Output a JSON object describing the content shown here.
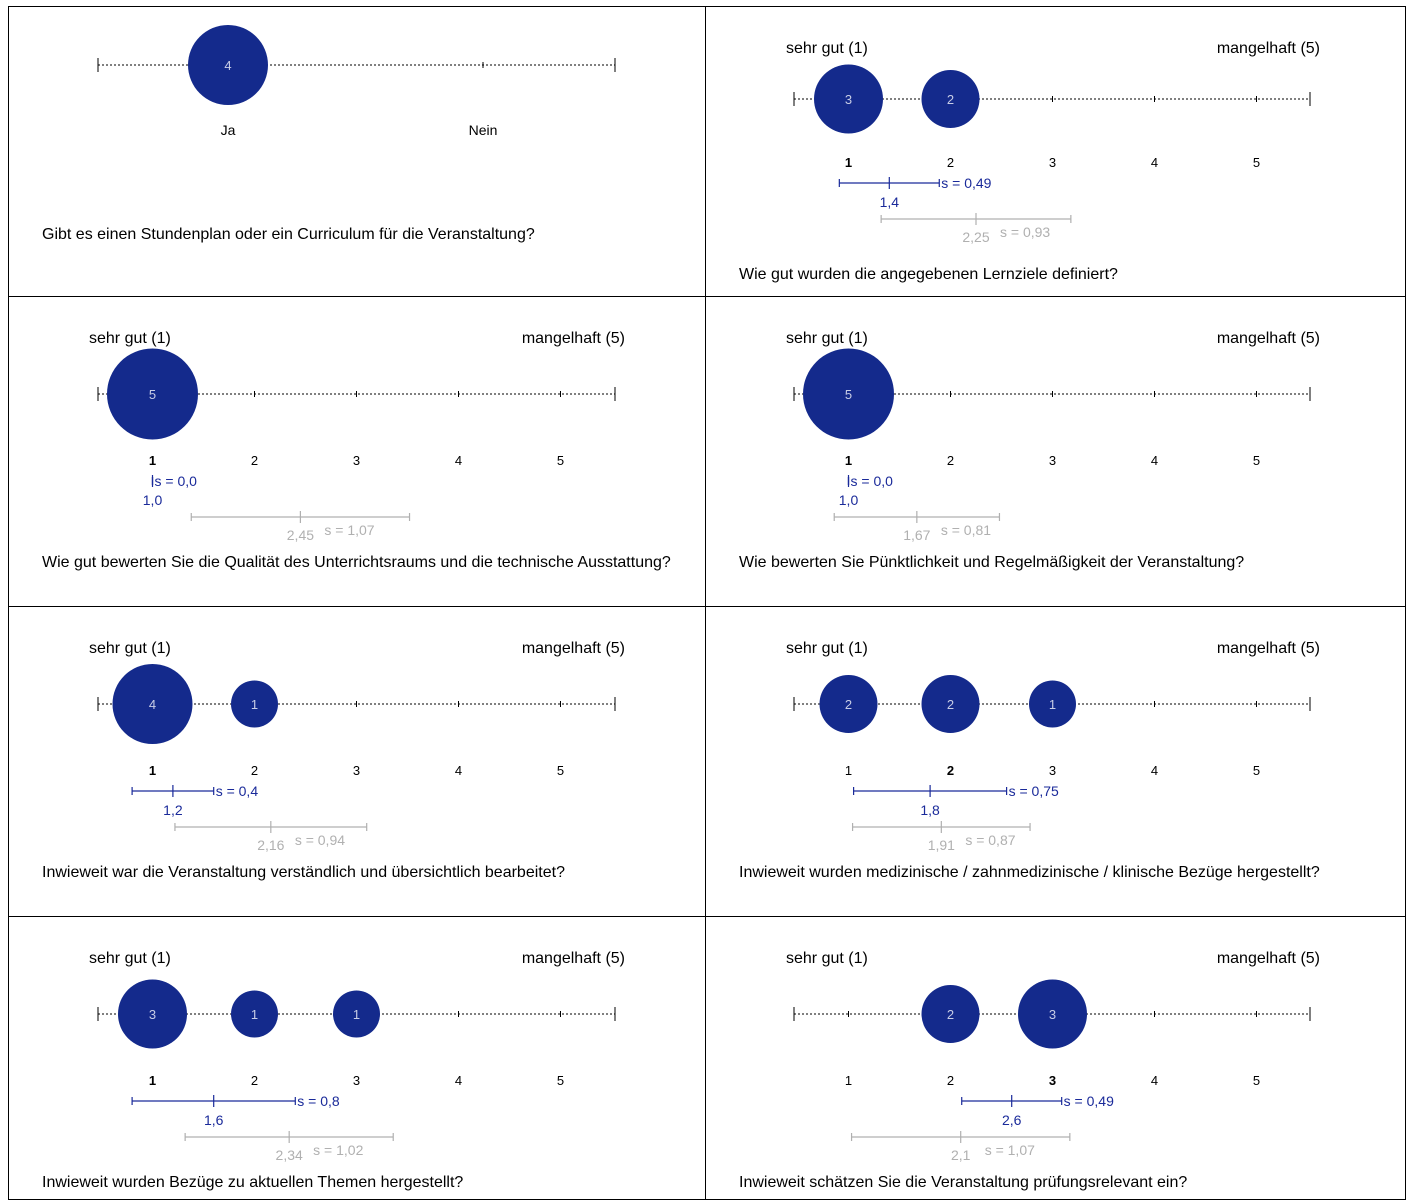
{
  "colors": {
    "bubble": "#142a8c",
    "bubble_text": "#c8cde6",
    "own_stat": "#1a2a9a",
    "ref_stat": "#b0b0b0",
    "axis": "#000000"
  },
  "chart_data": [
    {
      "type": "scatter",
      "subtype": "bubble-rating-yes-no",
      "question": "Gibt es einen Stundenplan oder ein Curriculum für die Veranstaltung?",
      "category_labels": [
        "Ja",
        "Nein"
      ],
      "bubbles": [
        {
          "x": 1,
          "count": 4
        }
      ]
    },
    {
      "type": "scatter",
      "subtype": "bubble-rating",
      "question": "Wie gut wurden die angegebenen Lernziele definiert?",
      "scale_low_label": "sehr gut (1)",
      "scale_high_label": "mangelhaft (5)",
      "ticks": [
        "1",
        "2",
        "3",
        "4",
        "5"
      ],
      "bold_tick": "1",
      "bubbles": [
        {
          "x": 1,
          "count": 3
        },
        {
          "x": 2,
          "count": 2
        }
      ],
      "mean": 1.4,
      "mean_label": "1,4",
      "sd_label": "s = 0,49",
      "ref_mean": 2.25,
      "ref_mean_label": "2,25",
      "ref_sd_label": "s = 0,93"
    },
    {
      "type": "scatter",
      "subtype": "bubble-rating",
      "question": "Wie gut bewerten Sie die Qualität des Unterrichtsraums und die technische Ausstattung?",
      "scale_low_label": "sehr gut (1)",
      "scale_high_label": "mangelhaft (5)",
      "ticks": [
        "1",
        "2",
        "3",
        "4",
        "5"
      ],
      "bold_tick": "1",
      "bubbles": [
        {
          "x": 1,
          "count": 5
        }
      ],
      "mean": 1.0,
      "mean_label": "1,0",
      "sd_label": "s = 0,0",
      "ref_mean": 2.45,
      "ref_mean_label": "2,45",
      "ref_sd_label": "s = 1,07"
    },
    {
      "type": "scatter",
      "subtype": "bubble-rating",
      "question": "Wie bewerten Sie Pünktlichkeit und Regelmäßigkeit der Veranstaltung?",
      "scale_low_label": "sehr gut (1)",
      "scale_high_label": "mangelhaft (5)",
      "ticks": [
        "1",
        "2",
        "3",
        "4",
        "5"
      ],
      "bold_tick": "1",
      "bubbles": [
        {
          "x": 1,
          "count": 5
        }
      ],
      "mean": 1.0,
      "mean_label": "1,0",
      "sd_label": "s = 0,0",
      "ref_mean": 1.67,
      "ref_mean_label": "1,67",
      "ref_sd_label": "s = 0,81"
    },
    {
      "type": "scatter",
      "subtype": "bubble-rating",
      "question": "Inwieweit war die Veranstaltung verständlich und übersichtlich bearbeitet?",
      "scale_low_label": "sehr gut (1)",
      "scale_high_label": "mangelhaft (5)",
      "ticks": [
        "1",
        "2",
        "3",
        "4",
        "5"
      ],
      "bold_tick": "1",
      "bubbles": [
        {
          "x": 1,
          "count": 4
        },
        {
          "x": 2,
          "count": 1
        }
      ],
      "mean": 1.2,
      "mean_label": "1,2",
      "sd_label": "s = 0,4",
      "ref_mean": 2.16,
      "ref_mean_label": "2,16",
      "ref_sd_label": "s = 0,94"
    },
    {
      "type": "scatter",
      "subtype": "bubble-rating",
      "question": "Inwieweit wurden medizinische / zahnmedizinische / klinische Bezüge hergestellt?",
      "scale_low_label": "sehr gut (1)",
      "scale_high_label": "mangelhaft (5)",
      "ticks": [
        "1",
        "2",
        "3",
        "4",
        "5"
      ],
      "bold_tick": "2",
      "bubbles": [
        {
          "x": 1,
          "count": 2
        },
        {
          "x": 2,
          "count": 2
        },
        {
          "x": 3,
          "count": 1
        }
      ],
      "mean": 1.8,
      "mean_label": "1,8",
      "sd_label": "s = 0,75",
      "ref_mean": 1.91,
      "ref_mean_label": "1,91",
      "ref_sd_label": "s = 0,87"
    },
    {
      "type": "scatter",
      "subtype": "bubble-rating",
      "question": "Inwieweit wurden Bezüge zu aktuellen Themen hergestellt?",
      "scale_low_label": "sehr gut (1)",
      "scale_high_label": "mangelhaft (5)",
      "ticks": [
        "1",
        "2",
        "3",
        "4",
        "5"
      ],
      "bold_tick": "1",
      "bubbles": [
        {
          "x": 1,
          "count": 3
        },
        {
          "x": 2,
          "count": 1
        },
        {
          "x": 3,
          "count": 1
        }
      ],
      "mean": 1.6,
      "mean_label": "1,6",
      "sd_label": "s = 0,8",
      "ref_mean": 2.34,
      "ref_mean_label": "2,34",
      "ref_sd_label": "s = 1,02"
    },
    {
      "type": "scatter",
      "subtype": "bubble-rating",
      "question": "Inwieweit schätzen Sie die Veranstaltung prüfungsrelevant ein?",
      "scale_low_label": "sehr gut (1)",
      "scale_high_label": "mangelhaft (5)",
      "ticks": [
        "1",
        "2",
        "3",
        "4",
        "5"
      ],
      "bold_tick": "3",
      "bubbles": [
        {
          "x": 2,
          "count": 2
        },
        {
          "x": 3,
          "count": 3
        }
      ],
      "mean": 2.6,
      "mean_label": "2,6",
      "sd_label": "s = 0,49",
      "ref_mean": 2.1,
      "ref_mean_label": "2,1",
      "ref_sd_label": "s = 1,07"
    }
  ]
}
